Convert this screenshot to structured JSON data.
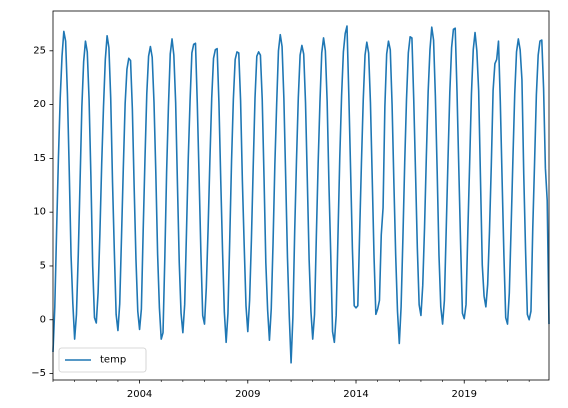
{
  "chart_data": {
    "type": "line",
    "title": "",
    "xlabel": "",
    "ylabel": "",
    "x_start": "2000-01",
    "x_end": "2022-12",
    "x_frequency": "monthly",
    "xlim": [
      "2000-01",
      "2022-12"
    ],
    "ylim": [
      -5.6,
      28.7
    ],
    "x_ticks": [
      "2004",
      "2009",
      "2014",
      "2019"
    ],
    "y_ticks": [
      -5,
      0,
      5,
      10,
      15,
      20,
      25
    ],
    "grid": false,
    "legend": {
      "placement": "lower-left",
      "entries": [
        "temp"
      ]
    },
    "series": [
      {
        "name": "temp",
        "color": "#1f77b4",
        "values": [
          -3.0,
          1.2,
          8.3,
          15.0,
          20.6,
          24.5,
          26.8,
          25.9,
          21.0,
          13.9,
          6.0,
          1.5,
          -1.8,
          0.5,
          6.0,
          12.8,
          19.8,
          24.0,
          25.9,
          24.9,
          20.5,
          13.4,
          5.0,
          0.2,
          -0.3,
          2.5,
          8.0,
          14.5,
          19.8,
          24.2,
          26.4,
          25.3,
          20.6,
          12.8,
          6.4,
          0.5,
          -1.0,
          1.5,
          7.8,
          14.2,
          20.1,
          23.3,
          24.3,
          24.1,
          19.6,
          12.3,
          5.6,
          0.8,
          -0.9,
          1.0,
          8.3,
          15.0,
          21.0,
          24.5,
          25.4,
          24.4,
          20.2,
          13.7,
          6.1,
          1.1,
          -1.8,
          -1.2,
          5.8,
          13.8,
          19.8,
          24.7,
          26.1,
          24.6,
          20.2,
          12.6,
          5.3,
          0.6,
          -1.2,
          1.4,
          8.1,
          15.0,
          20.4,
          24.8,
          25.6,
          25.7,
          20.1,
          13.3,
          6.2,
          0.4,
          -0.4,
          3.0,
          8.5,
          14.9,
          20.6,
          24.3,
          25.1,
          25.2,
          20.2,
          13.0,
          6.4,
          0.7,
          -2.1,
          0.6,
          7.5,
          14.8,
          20.5,
          24.2,
          24.9,
          24.8,
          20.4,
          12.9,
          6.9,
          1.3,
          -1.1,
          1.8,
          7.4,
          14.2,
          20.6,
          24.5,
          24.9,
          24.6,
          20.5,
          13.2,
          5.3,
          0.9,
          -1.9,
          1.0,
          7.1,
          14.4,
          20.0,
          25.0,
          26.5,
          25.4,
          20.6,
          13.3,
          5.8,
          0.3,
          -4.0,
          0.2,
          8.2,
          14.8,
          20.6,
          24.6,
          25.5,
          24.7,
          20.2,
          13.0,
          5.6,
          0.8,
          -1.8,
          0.5,
          7.7,
          14.5,
          20.2,
          24.8,
          26.2,
          25.0,
          20.3,
          12.5,
          6.0,
          -1.1,
          -2.1,
          0.4,
          7.8,
          15.1,
          20.8,
          24.9,
          26.6,
          27.3,
          21.0,
          13.9,
          6.6,
          1.3,
          1.1,
          1.3,
          8.0,
          14.5,
          20.4,
          24.6,
          25.8,
          24.8,
          20.2,
          13.1,
          5.8,
          0.5,
          1.0,
          1.8,
          7.9,
          10.4,
          19.8,
          24.7,
          25.9,
          25.1,
          20.0,
          12.7,
          6.0,
          0.8,
          -2.2,
          1.2,
          7.6,
          14.6,
          20.5,
          24.8,
          26.3,
          26.2,
          20.5,
          13.7,
          6.7,
          1.4,
          0.4,
          3.2,
          8.6,
          15.2,
          21.2,
          25.1,
          27.2,
          26.0,
          20.8,
          13.8,
          6.0,
          1.2,
          -0.4,
          1.8,
          8.3,
          14.9,
          21.1,
          25.3,
          27.0,
          27.1,
          21.2,
          14.0,
          7.0,
          0.6,
          0.1,
          1.4,
          8.2,
          14.5,
          21.0,
          25.1,
          26.7,
          25.0,
          21.3,
          13.2,
          5.1,
          2.2,
          1.2,
          3.3,
          8.2,
          14.3,
          21.3,
          23.8,
          24.2,
          25.9,
          20.3,
          13.0,
          6.0,
          0.2,
          -0.4,
          2.5,
          8.6,
          15.0,
          21.0,
          24.9,
          26.1,
          25.1,
          22.3,
          13.5,
          6.5,
          0.5,
          0.0,
          0.8,
          8.5,
          14.6,
          20.9,
          24.6,
          25.9,
          26.0,
          21.5,
          14.1,
          11.1,
          -0.4
        ]
      }
    ]
  }
}
